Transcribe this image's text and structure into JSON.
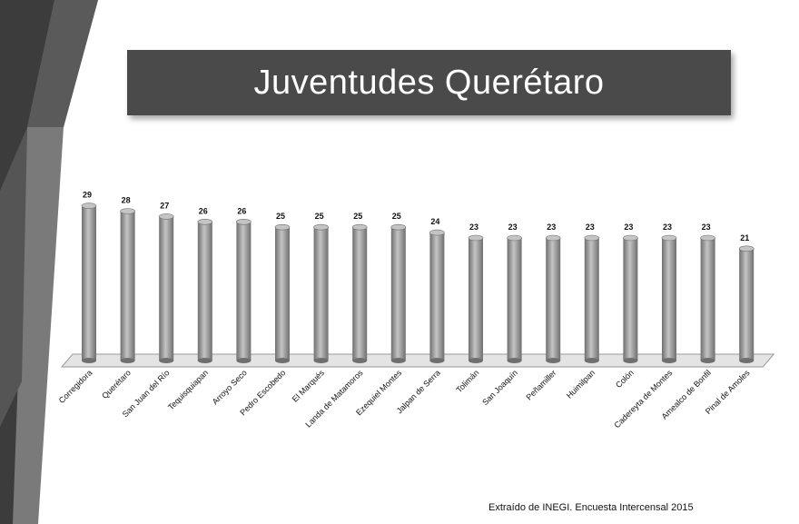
{
  "slide": {
    "title": "Juventudes Querétaro",
    "source_note": "Extraído de INEGI. Encuesta Intercensal 2015"
  },
  "colors": {
    "banner": "#4a4a4a",
    "bar": "#9a9a9a",
    "bar_dark": "#6f6f6f",
    "bar_light": "#c4c4c4",
    "deco_dark": "#3c3c3c",
    "deco_mid": "#7a7a7a"
  },
  "chart_data": {
    "type": "bar",
    "style": "3d-cylinder",
    "categories": [
      "Corregidora",
      "Querétaro",
      "San Juan del Río",
      "Tequisquiapan",
      "Arroyo Seco",
      "Pedro Escobedo",
      "El Marqués",
      "Landa de Matamoros",
      "Ezequiel Montes",
      "Jalpan de Serra",
      "Tolimán",
      "San Joaquín",
      "Peñamiller",
      "Huimilpan",
      "Colón",
      "Cadereyta de Montes",
      "Amealco de Bonfil",
      "Pinal de Amoles"
    ],
    "values": [
      29,
      28,
      27,
      26,
      26,
      25,
      25,
      25,
      25,
      24,
      23,
      23,
      23,
      23,
      23,
      23,
      23,
      21
    ],
    "title": "",
    "xlabel": "",
    "ylabel": "",
    "ylim": [
      0,
      30
    ],
    "grid": false,
    "legend": "none",
    "data_labels": true
  }
}
